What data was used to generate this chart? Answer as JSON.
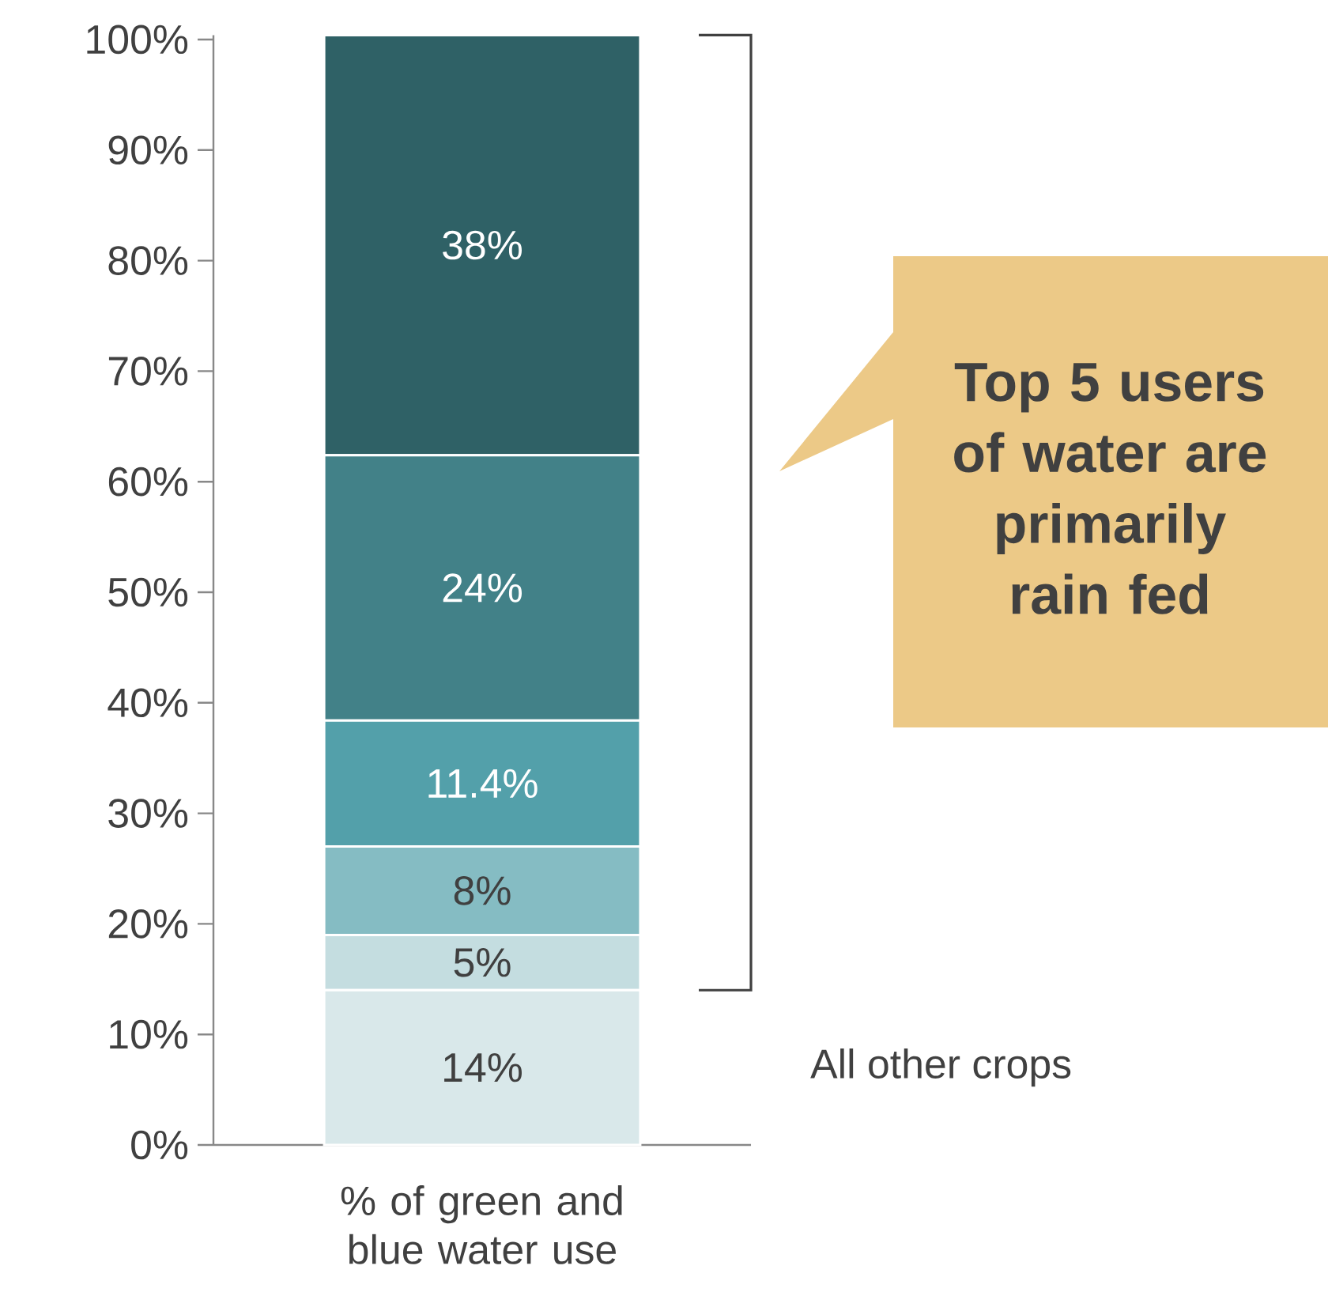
{
  "chart_data": {
    "type": "bar",
    "stacked": true,
    "categories": [
      "% of green and blue water use"
    ],
    "series": [
      {
        "color": "#d9e8ea",
        "values": [
          14
        ],
        "value_labels": [
          "14%"
        ]
      },
      {
        "color": "#c4dde0",
        "values": [
          5
        ],
        "value_labels": [
          "5%"
        ]
      },
      {
        "color": "#85bcc3",
        "values": [
          8
        ],
        "value_labels": [
          "8%"
        ]
      },
      {
        "color": "#53a0aa",
        "values": [
          11.4
        ],
        "value_labels": [
          "11.4%"
        ]
      },
      {
        "color": "#428188",
        "values": [
          24
        ],
        "value_labels": [
          "24%"
        ]
      },
      {
        "color": "#2f6166",
        "values": [
          38
        ],
        "value_labels": [
          "38%"
        ]
      }
    ],
    "ylim": [
      0,
      100.4
    ],
    "yticks": [
      {
        "value": 0,
        "label": "0%"
      },
      {
        "value": 10,
        "label": "10%"
      },
      {
        "value": 20,
        "label": "20%"
      },
      {
        "value": 30,
        "label": "30%"
      },
      {
        "value": 40,
        "label": "40%"
      },
      {
        "value": 50,
        "label": "50%"
      },
      {
        "value": 60,
        "label": "60%"
      },
      {
        "value": 70,
        "label": "70%"
      },
      {
        "value": 80,
        "label": "80%"
      },
      {
        "value": 90,
        "label": "90%"
      },
      {
        "value": 100,
        "label": "100%"
      }
    ],
    "annotations": [
      "All other crops",
      "Top 5 users of water are primarily rain fed"
    ]
  }
}
